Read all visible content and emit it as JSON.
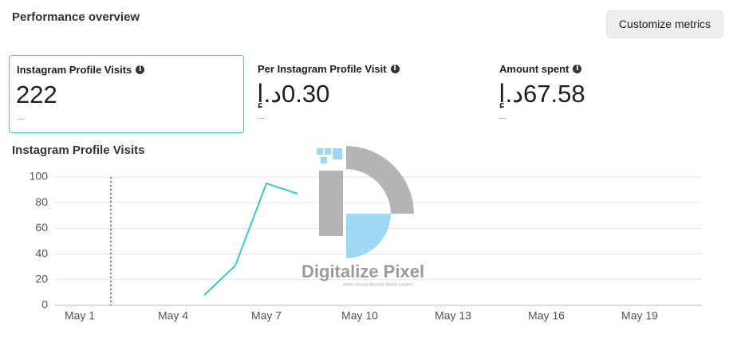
{
  "header": {
    "title": "Performance overview",
    "button": "Customize metrics"
  },
  "metrics": [
    {
      "label": "Instagram Profile Visits",
      "value": "222",
      "comparison": "--"
    },
    {
      "label": "Per Instagram Profile Visit",
      "value": "0.30د.إ",
      "comparison": "--"
    },
    {
      "label": "Amount spent",
      "value": "67.58د.إ",
      "comparison": "--"
    }
  ],
  "watermark": {
    "title": "Digitalize Pixel",
    "tagline": "Where Brands Become Market Leaders"
  },
  "chart_data": {
    "type": "line",
    "title": "Instagram Profile Visits",
    "categories": [
      "May 1",
      null,
      null,
      "May 4",
      null,
      null,
      "May 7",
      null,
      null,
      "May 10",
      null,
      null,
      "May 13",
      null,
      null,
      "May 16",
      null,
      null,
      "May 19",
      null,
      null
    ],
    "values": [
      null,
      null,
      null,
      null,
      8,
      31,
      95,
      87,
      null,
      null,
      null,
      null,
      null,
      null,
      null,
      null,
      null,
      null,
      null,
      null,
      null
    ],
    "color": "#3cc8c0",
    "ylim": [
      0,
      100
    ],
    "yticks": [
      0,
      20,
      40,
      60,
      80,
      100
    ],
    "grid": true
  }
}
